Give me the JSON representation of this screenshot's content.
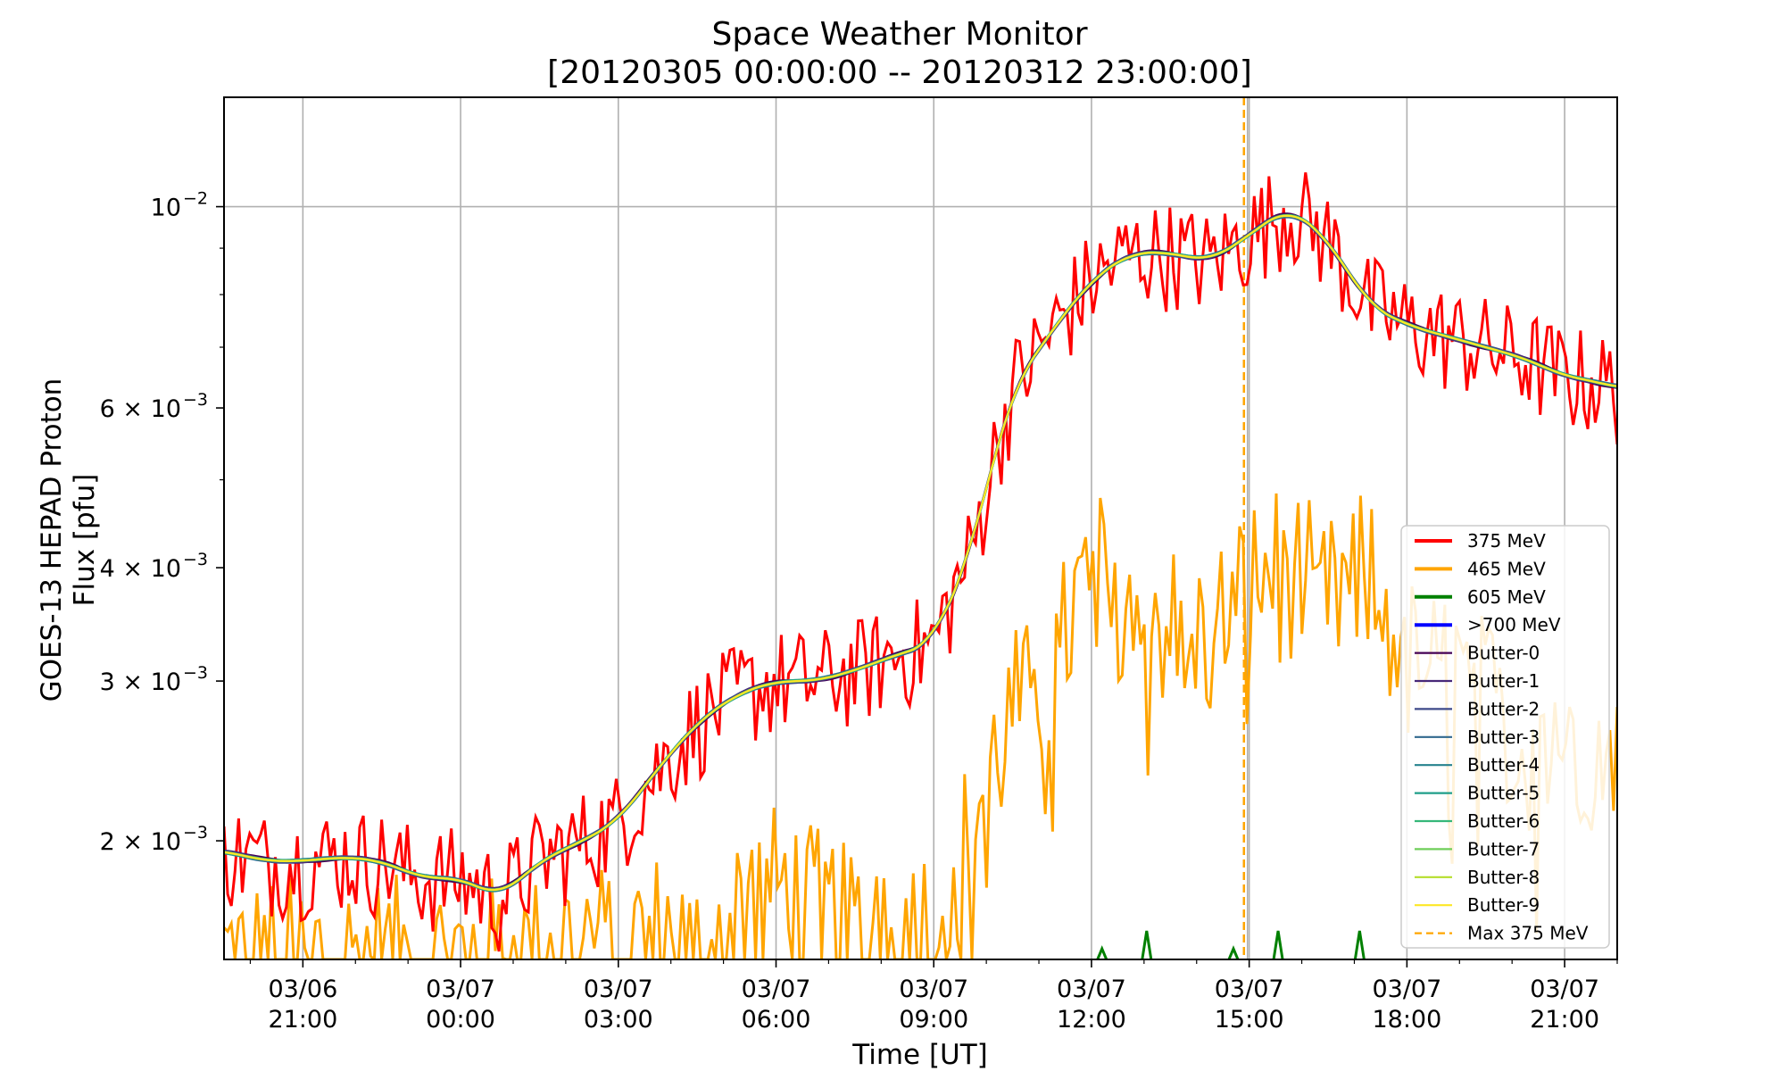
{
  "chart_data": {
    "type": "line",
    "title": [
      "Space Weather Monitor",
      "[20120305 00:00:00 -- 20120312 23:00:00]"
    ],
    "xlabel": "Time [UT]",
    "ylabel": [
      "GOES-13 HEPAD Proton",
      "Flux [pfu]"
    ],
    "x_unit": "hours relative to 03/07 00:00",
    "x_range": [
      -4.5,
      22.0
    ],
    "y_scale": "log",
    "y_range": [
      0.00148,
      0.0132
    ],
    "grid": true,
    "legend_position": "lower right",
    "x_ticks": [
      {
        "x": -3,
        "label": [
          "03/06",
          "21:00"
        ]
      },
      {
        "x": 0,
        "label": [
          "03/07",
          "00:00"
        ]
      },
      {
        "x": 3,
        "label": [
          "03/07",
          "03:00"
        ]
      },
      {
        "x": 6,
        "label": [
          "03/07",
          "06:00"
        ]
      },
      {
        "x": 9,
        "label": [
          "03/07",
          "09:00"
        ]
      },
      {
        "x": 12,
        "label": [
          "03/07",
          "12:00"
        ]
      },
      {
        "x": 15,
        "label": [
          "03/07",
          "15:00"
        ]
      },
      {
        "x": 18,
        "label": [
          "03/07",
          "18:00"
        ]
      },
      {
        "x": 21,
        "label": [
          "03/07",
          "21:00"
        ]
      }
    ],
    "y_ticks_major": [
      {
        "y": 0.01,
        "mant": "10",
        "exp": "−2"
      },
      {
        "y": 0.006,
        "mant": "6 × 10",
        "exp": "−3"
      },
      {
        "y": 0.004,
        "mant": "4 × 10",
        "exp": "−3"
      },
      {
        "y": 0.003,
        "mant": "3 × 10",
        "exp": "−3"
      },
      {
        "y": 0.002,
        "mant": "2 × 10",
        "exp": "−3"
      }
    ],
    "y_ticks_minor": [
      0.005,
      0.007,
      0.008,
      0.009
    ],
    "series": [
      {
        "name": "375 MeV",
        "color": "#ff0000",
        "style": "solid",
        "x": [
          -4.5,
          -3.75,
          -3.0,
          -2.25,
          -1.5,
          -0.75,
          0.0,
          0.75,
          1.5,
          2.25,
          3.0,
          3.75,
          4.5,
          5.25,
          6.0,
          6.75,
          7.5,
          8.25,
          9.0,
          9.75,
          10.5,
          11.25,
          12.0,
          12.75,
          13.5,
          14.25,
          15.0,
          15.75,
          16.5,
          17.25,
          18.0,
          18.75,
          19.5,
          20.25,
          21.0,
          21.75,
          22.0
        ],
        "y": [
          0.00195,
          0.0019,
          0.0019,
          0.00192,
          0.0019,
          0.00182,
          0.00182,
          0.00173,
          0.0019,
          0.00199,
          0.0021,
          0.0024,
          0.0027,
          0.0029,
          0.003,
          0.003,
          0.00308,
          0.0032,
          0.0033,
          0.0042,
          0.0063,
          0.0073,
          0.0083,
          0.0089,
          0.0089,
          0.0087,
          0.0093,
          0.01,
          0.0092,
          0.0078,
          0.0074,
          0.0072,
          0.007,
          0.0068,
          0.0065,
          0.0064,
          0.0063
        ]
      },
      {
        "name": "465 MeV",
        "color": "#ffa500",
        "style": "solid",
        "x": [
          -4.5,
          -3.75,
          -3.0,
          -2.25,
          -1.5,
          -0.75,
          0.0,
          0.75,
          1.5,
          2.25,
          3.0,
          3.75,
          4.5,
          5.25,
          6.0,
          6.75,
          7.5,
          8.25,
          9.0,
          9.75,
          10.5,
          11.25,
          12.0,
          12.75,
          13.5,
          14.25,
          15.0,
          15.75,
          16.5,
          17.25,
          18.0,
          18.75,
          19.5,
          20.25,
          21.0,
          21.75,
          22.0
        ],
        "y": [
          0.0015,
          0.0015,
          0.0015,
          0.0015,
          0.0015,
          0.0015,
          0.0015,
          0.0015,
          0.0015,
          0.0016,
          0.00152,
          0.0016,
          0.0015,
          0.0017,
          0.0018,
          0.0017,
          0.0016,
          0.0018,
          0.0016,
          0.0021,
          0.0028,
          0.0031,
          0.004,
          0.0038,
          0.0035,
          0.0034,
          0.0039,
          0.0041,
          0.0037,
          0.004,
          0.0032,
          0.0031,
          0.0029,
          0.0028,
          0.0027,
          0.0026,
          0.0028
        ]
      },
      {
        "name": "605 MeV",
        "color": "#008000",
        "style": "solid",
        "x": [
          -4.5,
          22.0
        ],
        "y": [
          0.0014,
          0.0014
        ]
      },
      {
        "name": ">700 MeV",
        "color": "#0000ff",
        "style": "solid",
        "x": [
          -4.5,
          22.0
        ],
        "y": [
          0.0014,
          0.0014
        ]
      },
      {
        "name": "Butter-0",
        "color": "#440154",
        "style": "solid",
        "smooth": true
      },
      {
        "name": "Butter-1",
        "color": "#482878",
        "style": "solid",
        "smooth": true
      },
      {
        "name": "Butter-2",
        "color": "#3e4989",
        "style": "solid",
        "smooth": true
      },
      {
        "name": "Butter-3",
        "color": "#31688e",
        "style": "solid",
        "smooth": true
      },
      {
        "name": "Butter-4",
        "color": "#26828e",
        "style": "solid",
        "smooth": true
      },
      {
        "name": "Butter-5",
        "color": "#1f9e89",
        "style": "solid",
        "smooth": true
      },
      {
        "name": "Butter-6",
        "color": "#35b779",
        "style": "solid",
        "smooth": true
      },
      {
        "name": "Butter-7",
        "color": "#6ece58",
        "style": "solid",
        "smooth": true
      },
      {
        "name": "Butter-8",
        "color": "#b5de2b",
        "style": "solid",
        "smooth": true
      },
      {
        "name": "Butter-9",
        "color": "#fde725",
        "style": "solid",
        "smooth": true
      },
      {
        "name": "Max 375 MeV",
        "color": "#ffa500",
        "style": "dashed",
        "vline_x": 14.9
      }
    ]
  }
}
